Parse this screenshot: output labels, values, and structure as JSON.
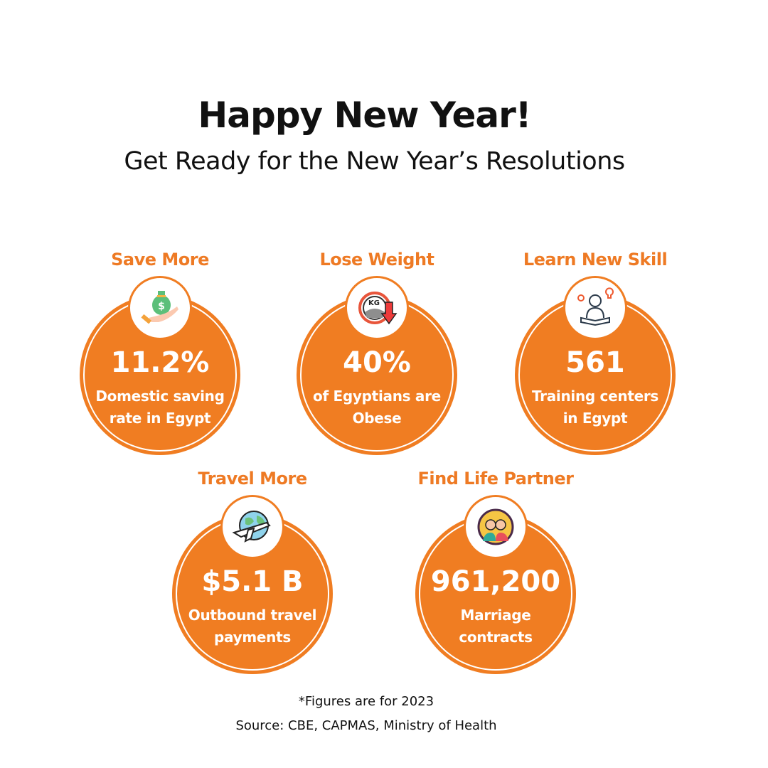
{
  "title": "Happy New Year!",
  "subtitle": "Get Ready for the New Year’s Resolutions",
  "accent_color": "#f07d22",
  "cards": [
    {
      "heading": "Save More",
      "value": "11.2%",
      "desc1": "Domestic saving",
      "desc2": "rate in Egypt",
      "icon": "money-bag-hand-icon"
    },
    {
      "heading": "Lose Weight",
      "value": "40%",
      "desc1": "of Egyptians are",
      "desc2": "Obese",
      "icon": "weight-scale-icon"
    },
    {
      "heading": "Learn New Skill",
      "value": "561",
      "desc1": "Training centers",
      "desc2": "in Egypt",
      "icon": "learner-icon"
    },
    {
      "heading": "Travel More",
      "value": "$5.1 B",
      "desc1": "Outbound travel",
      "desc2": "payments",
      "icon": "globe-plane-icon"
    },
    {
      "heading": "Find Life Partner",
      "value": "961,200",
      "desc1": "Marriage",
      "desc2": "contracts",
      "icon": "couple-icon"
    }
  ],
  "icon_text": {
    "kg": "KG",
    "dollar": "$"
  },
  "footnote": "*Figures are for 2023",
  "source": "Source: CBE, CAPMAS, Ministry of Health"
}
